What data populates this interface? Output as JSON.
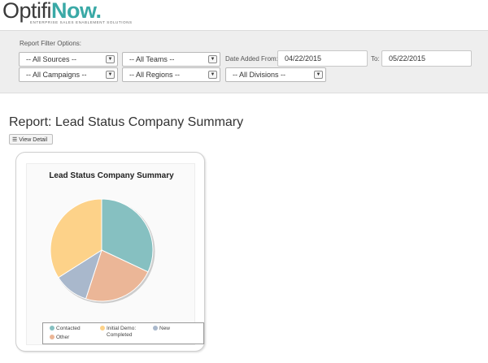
{
  "logo": {
    "word1": "Optifi",
    "word2": "Now.",
    "tagline": "ENTERPRISE SALES ENABLEMENT SOLUTIONS"
  },
  "filters": {
    "title": "Report Filter Options:",
    "sources": "-- All Sources --",
    "teams": "-- All Teams --",
    "campaigns": "-- All Campaigns --",
    "regions": "-- All Regions --",
    "divisions": "-- All Divisions --",
    "date_from_label": "Date Added From:",
    "date_from": "04/22/2015",
    "date_to_label": "To:",
    "date_to": "05/22/2015"
  },
  "report": {
    "title": "Report: Lead Status Company Summary",
    "view_detail": "View Detail"
  },
  "colors": {
    "contacted": "#86c0c1",
    "initial_demo": "#fdd289",
    "new": "#a9b8cc",
    "other": "#ebb697"
  },
  "chart_data": {
    "type": "pie",
    "title": "Lead Status Company Summary",
    "categories": [
      "Contacted",
      "Other",
      "New",
      "Initial Demo: Completed"
    ],
    "values": [
      32,
      23,
      11,
      34
    ],
    "legend_position": "bottom"
  }
}
